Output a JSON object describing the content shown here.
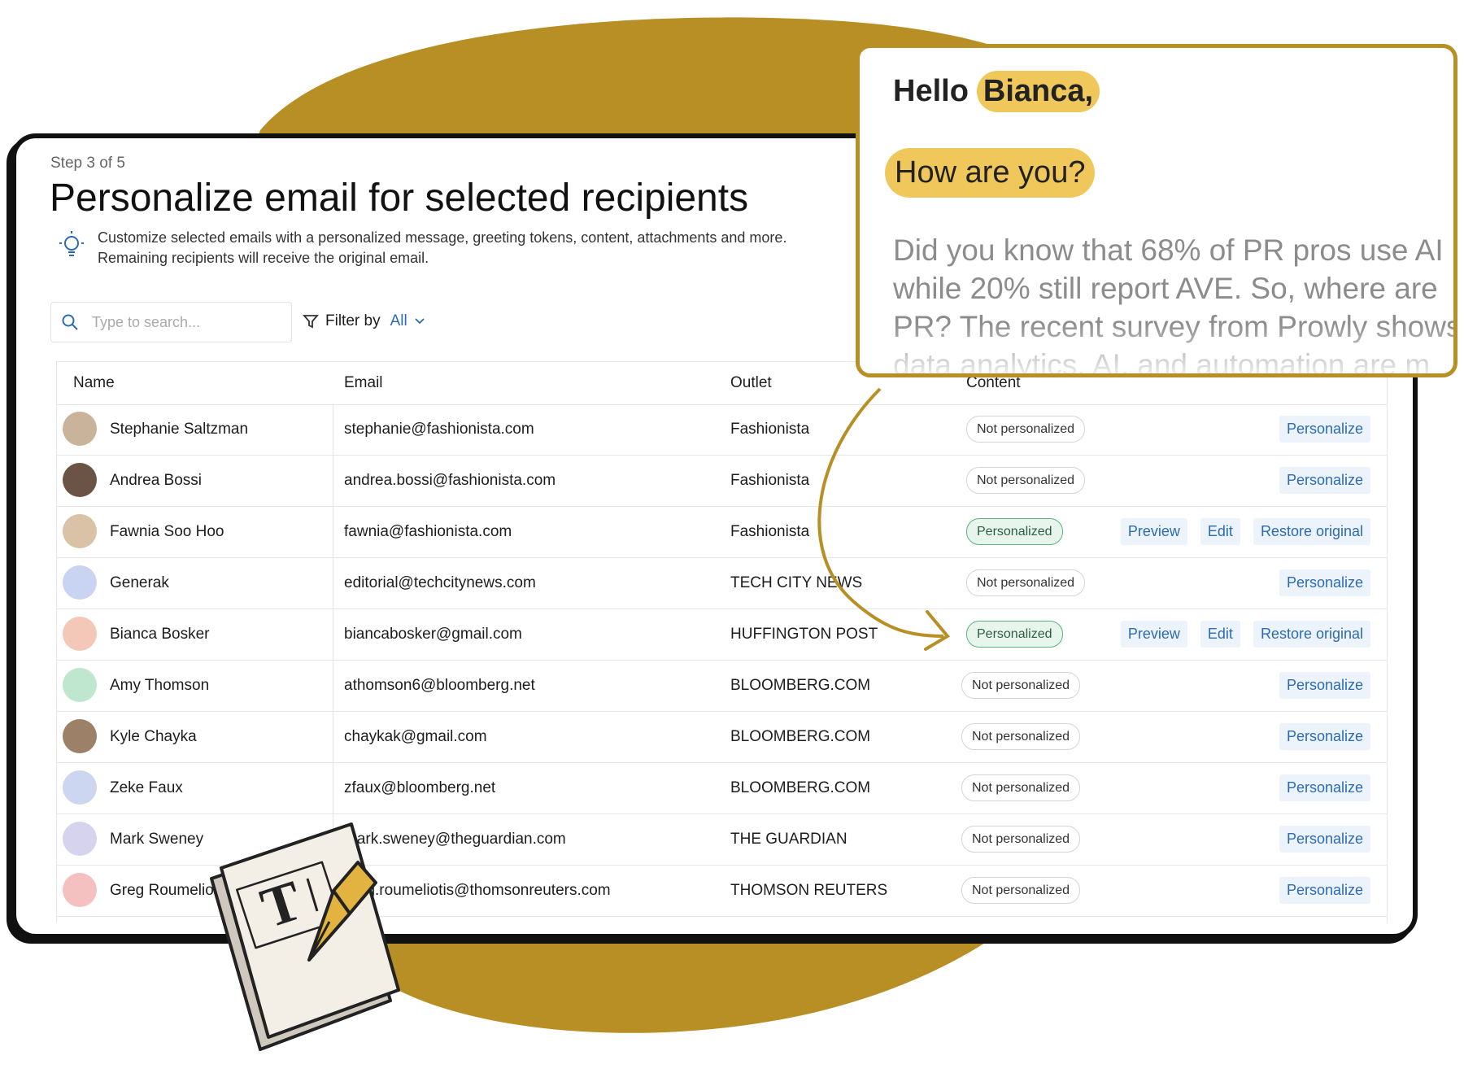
{
  "header": {
    "step": "Step 3 of 5",
    "title": "Personalize email for selected recipients",
    "description": [
      "Customize selected emails with a personalized message, greeting tokens, content, attachments and more.",
      "Remaining recipients will receive the original email."
    ],
    "search_placeholder": "Type to search...",
    "filter_label": "Filter by",
    "filter_value": "All"
  },
  "table": {
    "columns": [
      "Name",
      "Email",
      "Outlet",
      "Content"
    ],
    "rows": [
      {
        "name": "Stephanie Saltzman",
        "email": "stephanie@fashionista.com",
        "outlet": "Fashionista",
        "status": "Not personalized",
        "actions": [
          "Personalize"
        ]
      },
      {
        "name": "Andrea Bossi",
        "email": "andrea.bossi@fashionista.com",
        "outlet": "Fashionista",
        "status": "Not personalized",
        "actions": [
          "Personalize"
        ]
      },
      {
        "name": "Fawnia Soo Hoo",
        "email": "fawnia@fashionista.com",
        "outlet": "Fashionista",
        "status": "Personalized",
        "actions": [
          "Preview",
          "Edit",
          "Restore original"
        ]
      },
      {
        "name": "Generak",
        "email": "editorial@techcitynews.com",
        "outlet": "TECH CITY NEWS",
        "status": "Not personalized",
        "actions": [
          "Personalize"
        ]
      },
      {
        "name": "Bianca Bosker",
        "email": "biancabosker@gmail.com",
        "outlet": "HUFFINGTON POST",
        "status": "Personalized",
        "actions": [
          "Preview",
          "Edit",
          "Restore original"
        ]
      },
      {
        "name": "Amy Thomson",
        "email": "athomson6@bloomberg.net",
        "outlet": "BLOOMBERG.COM",
        "status": "Not personalized",
        "actions": [
          "Personalize"
        ]
      },
      {
        "name": "Kyle Chayka",
        "email": "chaykak@gmail.com",
        "outlet": "BLOOMBERG.COM",
        "status": "Not personalized",
        "actions": [
          "Personalize"
        ]
      },
      {
        "name": "Zeke Faux",
        "email": "zfaux@bloomberg.net",
        "outlet": "BLOOMBERG.COM",
        "status": "Not personalized",
        "actions": [
          "Personalize"
        ]
      },
      {
        "name": "Mark Sweney",
        "email": "mark.sweney@theguardian.com",
        "outlet": "THE GUARDIAN",
        "status": "Not personalized",
        "actions": [
          "Personalize"
        ]
      },
      {
        "name": "Greg Roumeliotis",
        "email": "greg.roumeliotis@thomsonreuters.com",
        "outlet": "THOMSON REUTERS",
        "status": "Not personalized",
        "actions": [
          "Personalize"
        ]
      }
    ]
  },
  "popup": {
    "greeting": "Hello",
    "name": "Bianca,",
    "question": "How are you?",
    "body": [
      "Did you know that 68% of PR pros use AI",
      "while 20% still report AVE. So, where are",
      "PR? The recent survey from Prowly shows",
      "data analytics, AI, and automation are m"
    ]
  }
}
